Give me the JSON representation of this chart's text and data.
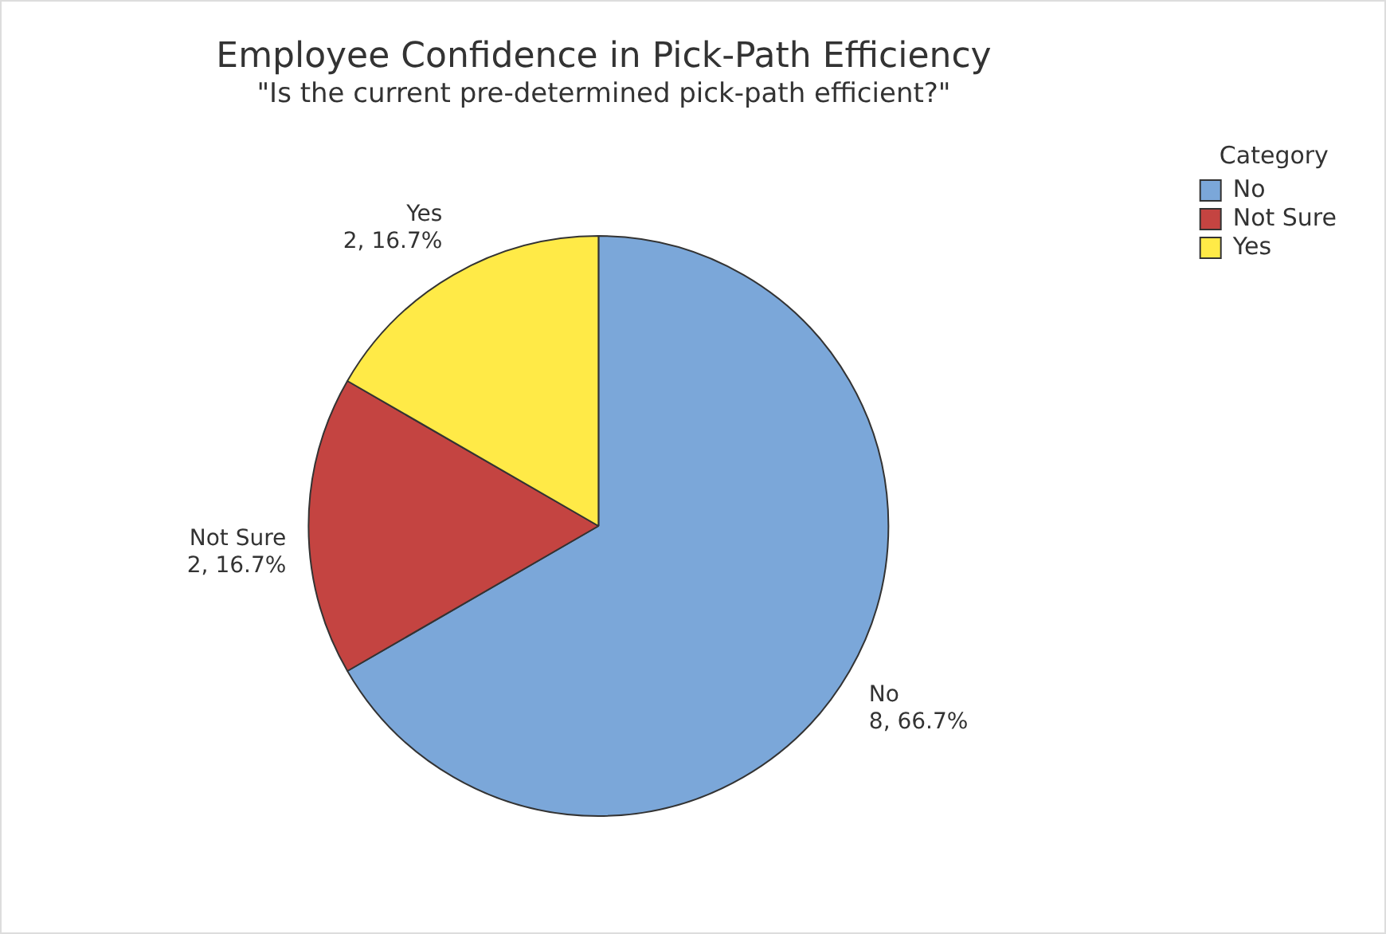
{
  "chart_data": {
    "type": "pie",
    "title": "Employee Confidence in Pick-Path Efficiency",
    "subtitle": "\"Is the current pre-determined pick-path efficient?\"",
    "legend_title": "Category",
    "legend": "top right",
    "categories": [
      "No",
      "Not Sure",
      "Yes"
    ],
    "values": [
      8,
      2,
      2
    ],
    "colors": [
      "#7ba7d9",
      "#c44441",
      "#ffea47"
    ],
    "value_labels": [
      "8, 66.7%",
      "2, 16.7%",
      "2, 16.7%"
    ]
  }
}
